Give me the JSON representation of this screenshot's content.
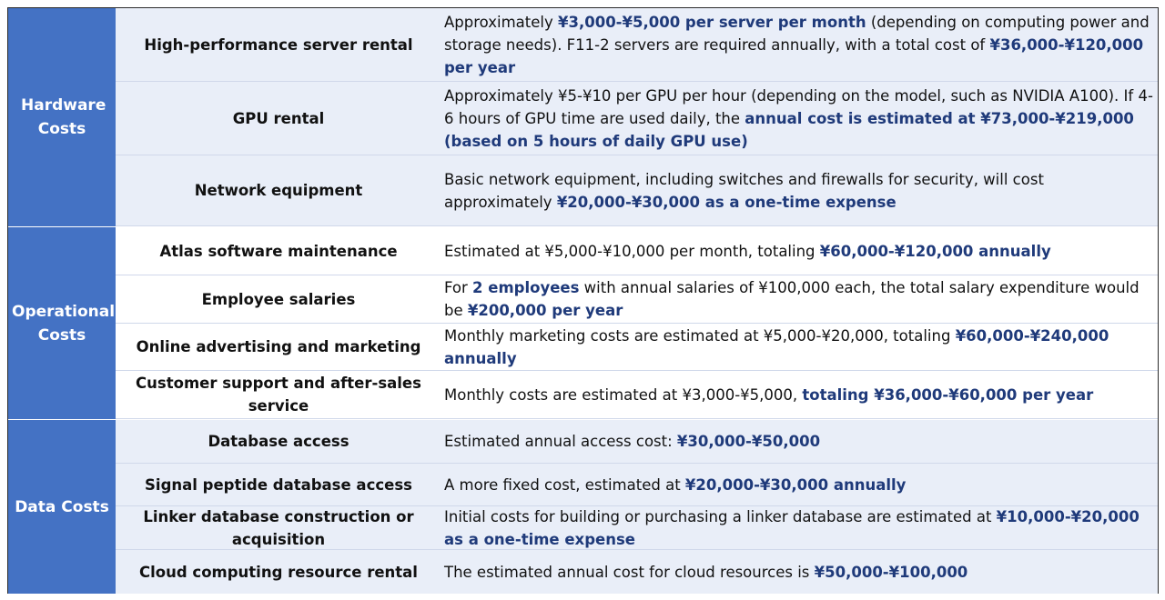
{
  "groups": [
    {
      "label": "Hardware Costs"
    },
    {
      "label": "Operational Costs"
    },
    {
      "label": "Data Costs"
    }
  ],
  "rows": [
    {
      "item": "High-performance server rental",
      "desc": [
        {
          "t": "Approximately "
        },
        {
          "t": "¥3,000-¥5,000 per server per month",
          "b": true
        },
        {
          "t": " (depending on computing power and storage needs). F11-2 servers are required annually, with a total cost of "
        },
        {
          "t": "¥36,000-¥120,000 per year",
          "b": true
        }
      ]
    },
    {
      "item": "GPU rental",
      "desc": [
        {
          "t": "Approximately ¥5-¥10 per GPU per hour (depending on the model, such as NVIDIA A100). If 4-6 hours of GPU time are used daily, the "
        },
        {
          "t": "annual cost is estimated at ¥73,000-¥219,000 (based on 5 hours of daily GPU use)",
          "b": true
        }
      ]
    },
    {
      "item": "Network equipment",
      "desc": [
        {
          "t": "Basic network equipment, including switches and firewalls for security, will cost approximately "
        },
        {
          "t": "¥20,000-¥30,000 as a one-time expense",
          "b": true
        }
      ]
    },
    {
      "item": "Atlas software maintenance",
      "desc": [
        {
          "t": "Estimated at ¥5,000-¥10,000 per month, totaling "
        },
        {
          "t": "¥60,000-¥120,000 annually",
          "b": true
        }
      ]
    },
    {
      "item": "Employee salaries",
      "desc": [
        {
          "t": "For "
        },
        {
          "t": "2 employees",
          "b": true
        },
        {
          "t": " with annual salaries of ¥100,000 each, the total salary expenditure would be "
        },
        {
          "t": "¥200,000 per year",
          "b": true
        }
      ]
    },
    {
      "item": "Online advertising and marketing",
      "desc": [
        {
          "t": "Monthly marketing costs are estimated at ¥5,000-¥20,000, totaling "
        },
        {
          "t": "¥60,000-¥240,000 annually",
          "b": true
        }
      ]
    },
    {
      "item": "Customer support and after-sales service",
      "desc": [
        {
          "t": "Monthly costs are estimated at ¥3,000-¥5,000, "
        },
        {
          "t": "totaling ¥36,000-¥60,000 per year",
          "b": true
        }
      ]
    },
    {
      "item": "Database access",
      "desc": [
        {
          "t": "Estimated annual access cost: "
        },
        {
          "t": "¥30,000-¥50,000",
          "b": true
        }
      ]
    },
    {
      "item": "Signal peptide database access",
      "desc": [
        {
          "t": "A more fixed cost, estimated at "
        },
        {
          "t": "¥20,000-¥30,000 annually",
          "b": true
        }
      ]
    },
    {
      "item": "Linker database construction or acquisition",
      "desc": [
        {
          "t": "Initial costs for building or purchasing a linker database are estimated at "
        },
        {
          "t": "¥10,000-¥20,000 as a one-time expense",
          "b": true
        }
      ]
    },
    {
      "item": "Cloud computing resource rental",
      "desc": [
        {
          "t": "The estimated annual cost for cloud resources is "
        },
        {
          "t": "¥50,000-¥100,000",
          "b": true
        }
      ]
    }
  ]
}
